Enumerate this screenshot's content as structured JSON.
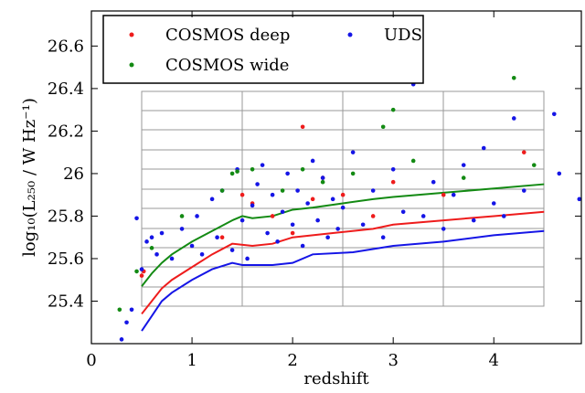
{
  "chart_data": {
    "type": "scatter",
    "x_label": "redshift",
    "y_label": "log₁₀(L₂₅₀ / W Hz⁻¹)",
    "xlim": [
      0,
      4.87
    ],
    "ylim": [
      25.2,
      26.765
    ],
    "xticks": [
      0,
      1,
      2,
      3,
      4
    ],
    "yticks": [
      25.4,
      25.6,
      25.8,
      26.0,
      26.2,
      26.4,
      26.6
    ],
    "legend": "upper left",
    "series": [
      {
        "name": "COSMOS deep",
        "color": "#ee1c1c",
        "x": [
          0.5,
          0.52,
          1.3,
          1.5,
          1.6,
          1.8,
          2.0,
          2.1,
          2.2,
          2.3,
          2.5,
          2.8,
          3.0,
          3.5,
          4.3
        ],
        "values": [
          25.52,
          25.54,
          25.7,
          25.9,
          25.86,
          25.8,
          25.72,
          26.22,
          25.88,
          25.98,
          25.9,
          25.8,
          25.96,
          25.9,
          26.1
        ]
      },
      {
        "name": "UDS",
        "color": "#1515e6",
        "x": [
          0.3,
          0.35,
          0.4,
          0.45,
          0.5,
          0.55,
          0.6,
          0.65,
          0.7,
          0.8,
          0.9,
          1.0,
          1.05,
          1.1,
          1.2,
          1.25,
          1.3,
          1.4,
          1.45,
          1.5,
          1.55,
          1.6,
          1.65,
          1.7,
          1.75,
          1.8,
          1.85,
          1.9,
          1.95,
          2.0,
          2.05,
          2.1,
          2.15,
          2.2,
          2.25,
          2.3,
          2.35,
          2.4,
          2.45,
          2.5,
          2.6,
          2.7,
          2.8,
          2.9,
          3.0,
          3.1,
          3.2,
          3.3,
          3.4,
          3.5,
          3.6,
          3.7,
          3.8,
          3.9,
          4.0,
          4.1,
          4.2,
          4.3,
          4.6,
          4.65,
          4.85
        ],
        "values": [
          25.22,
          25.3,
          25.36,
          25.79,
          25.55,
          25.68,
          25.7,
          25.62,
          25.72,
          25.6,
          25.74,
          25.66,
          25.8,
          25.62,
          25.88,
          25.7,
          25.92,
          25.64,
          26.02,
          25.78,
          25.6,
          25.85,
          25.95,
          26.04,
          25.72,
          25.9,
          25.68,
          25.82,
          26.0,
          25.76,
          25.92,
          25.66,
          25.86,
          26.06,
          25.78,
          25.98,
          25.7,
          25.88,
          25.74,
          25.84,
          26.1,
          25.76,
          25.92,
          25.7,
          26.02,
          25.82,
          26.42,
          25.8,
          25.96,
          25.74,
          25.9,
          26.04,
          25.78,
          26.12,
          25.86,
          25.8,
          26.26,
          25.92,
          26.28,
          26.0,
          25.88
        ]
      },
      {
        "name": "COSMOS wide",
        "color": "#138a13",
        "x": [
          0.28,
          0.45,
          0.6,
          0.9,
          1.3,
          1.4,
          1.45,
          1.6,
          1.9,
          2.1,
          2.3,
          2.6,
          2.9,
          3.0,
          3.2,
          3.7,
          4.2,
          4.4
        ],
        "values": [
          25.36,
          25.54,
          25.65,
          25.8,
          25.92,
          26.0,
          26.01,
          26.02,
          25.92,
          26.02,
          25.96,
          26.0,
          26.22,
          26.3,
          26.06,
          25.98,
          26.45,
          26.04
        ]
      }
    ],
    "lines": [
      {
        "color": "#138a13",
        "x": [
          0.5,
          0.6,
          0.7,
          0.8,
          1.0,
          1.2,
          1.4,
          1.5,
          1.6,
          1.8,
          2.0,
          2.2,
          2.5,
          2.8,
          3.0,
          3.5,
          4.0,
          4.5
        ],
        "values": [
          25.47,
          25.53,
          25.58,
          25.62,
          25.68,
          25.73,
          25.78,
          25.8,
          25.79,
          25.8,
          25.83,
          25.84,
          25.86,
          25.88,
          25.89,
          25.91,
          25.93,
          25.95
        ]
      },
      {
        "color": "#ee1c1c",
        "x": [
          0.5,
          0.6,
          0.7,
          0.8,
          1.0,
          1.2,
          1.4,
          1.6,
          1.8,
          2.0,
          2.4,
          2.8,
          3.0,
          3.5,
          4.0,
          4.5
        ],
        "values": [
          25.34,
          25.4,
          25.46,
          25.5,
          25.56,
          25.62,
          25.67,
          25.66,
          25.67,
          25.7,
          25.72,
          25.74,
          25.76,
          25.78,
          25.8,
          25.82
        ]
      },
      {
        "color": "#1515e6",
        "x": [
          0.5,
          0.6,
          0.7,
          0.8,
          1.0,
          1.2,
          1.4,
          1.5,
          1.8,
          2.0,
          2.2,
          2.6,
          3.0,
          3.5,
          4.0,
          4.5
        ],
        "values": [
          25.26,
          25.33,
          25.4,
          25.44,
          25.5,
          25.55,
          25.58,
          25.57,
          25.57,
          25.58,
          25.62,
          25.63,
          25.66,
          25.68,
          25.71,
          25.73
        ]
      }
    ]
  }
}
